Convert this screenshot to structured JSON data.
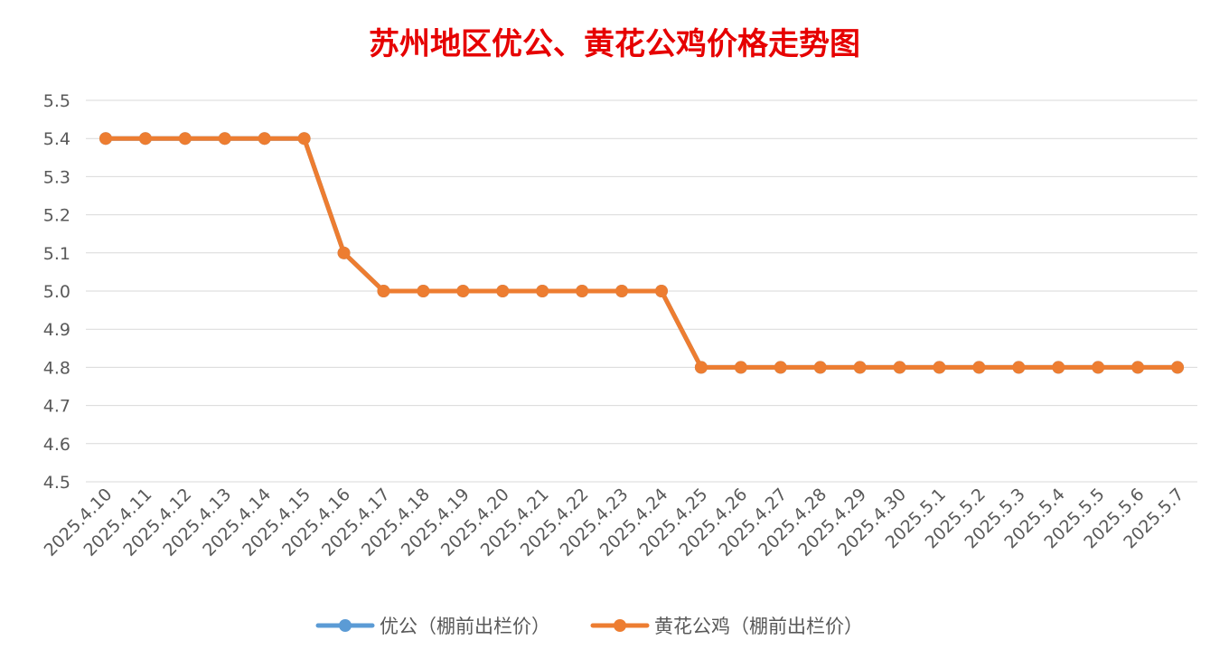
{
  "colors": {
    "title": "#e60000",
    "grid": "#d9d9d9",
    "tick_text": "#595959",
    "series_youqong": "#5b9bd5",
    "series_huanghua": "#ed7d31",
    "background": "#ffffff"
  },
  "chart_data": {
    "type": "line",
    "title": "苏州地区优公、黄花公鸡价格走势图",
    "xlabel": "",
    "ylabel": "",
    "ylim": [
      4.5,
      5.5
    ],
    "y_ticks": [
      "5.5",
      "5.4",
      "5.3",
      "5.2",
      "5.1",
      "5.0",
      "4.9",
      "4.8",
      "4.7",
      "4.6",
      "4.5"
    ],
    "grid": true,
    "legend_position": "bottom",
    "categories": [
      "2025.4.10",
      "2025.4.11",
      "2025.4.12",
      "2025.4.13",
      "2025.4.14",
      "2025.4.15",
      "2025.4.16",
      "2025.4.17",
      "2025.4.18",
      "2025.4.19",
      "2025.4.20",
      "2025.4.21",
      "2025.4.22",
      "2025.4.23",
      "2025.4.24",
      "2025.4.25",
      "2025.4.26",
      "2025.4.27",
      "2025.4.28",
      "2025.4.29",
      "2025.4.30",
      "2025.5.1",
      "2025.5.2",
      "2025.5.3",
      "2025.5.4",
      "2025.5.5",
      "2025.5.6",
      "2025.5.7"
    ],
    "series": [
      {
        "name": "优公（棚前出栏价）",
        "color": "#5b9bd5",
        "values": [
          5.4,
          5.4,
          5.4,
          5.4,
          5.4,
          5.4,
          5.1,
          5.0,
          5.0,
          5.0,
          5.0,
          5.0,
          5.0,
          5.0,
          5.0,
          4.8,
          4.8,
          4.8,
          4.8,
          4.8,
          4.8,
          4.8,
          4.8,
          4.8,
          4.8,
          4.8,
          4.8,
          4.8
        ]
      },
      {
        "name": "黄花公鸡（棚前出栏价）",
        "color": "#ed7d31",
        "values": [
          5.4,
          5.4,
          5.4,
          5.4,
          5.4,
          5.4,
          5.1,
          5.0,
          5.0,
          5.0,
          5.0,
          5.0,
          5.0,
          5.0,
          5.0,
          4.8,
          4.8,
          4.8,
          4.8,
          4.8,
          4.8,
          4.8,
          4.8,
          4.8,
          4.8,
          4.8,
          4.8,
          4.8
        ]
      }
    ]
  }
}
